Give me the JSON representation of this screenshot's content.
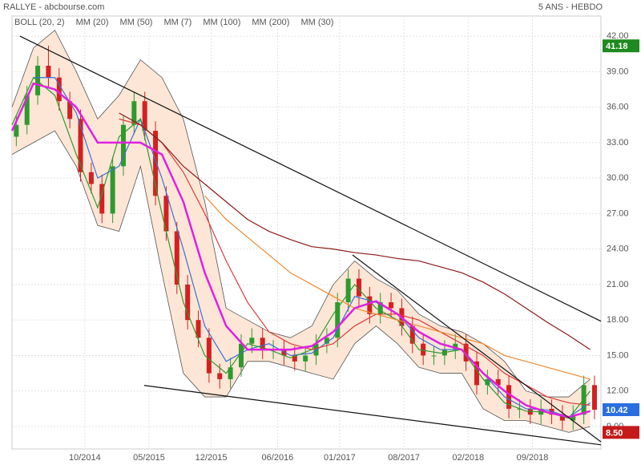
{
  "chart_data": {
    "type": "candlestick",
    "title": "RALLYE - abcbourse.com",
    "subtitle": "5 ANS - HEBDO",
    "xlim": [
      0,
      275
    ],
    "xticks": [
      {
        "value": 34,
        "label": "10/2014"
      },
      {
        "value": 64,
        "label": "05/2015"
      },
      {
        "value": 93,
        "label": "12/2015"
      },
      {
        "value": 124,
        "label": "06/2016"
      },
      {
        "value": 153,
        "label": "01/2017"
      },
      {
        "value": 183,
        "label": "08/2017"
      },
      {
        "value": 213,
        "label": "02/2018"
      },
      {
        "value": 243,
        "label": "09/2018"
      }
    ],
    "ylim": [
      7.1,
      43.7
    ],
    "yticks": [
      {
        "value": 9,
        "label": "9.00"
      },
      {
        "value": 12,
        "label": "12.00"
      },
      {
        "value": 15,
        "label": "15.00"
      },
      {
        "value": 18,
        "label": "18.00"
      },
      {
        "value": 21,
        "label": "21.00"
      },
      {
        "value": 24,
        "label": "24.00"
      },
      {
        "value": 27,
        "label": "27.00"
      },
      {
        "value": 30,
        "label": "30.00"
      },
      {
        "value": 33,
        "label": "33.00"
      },
      {
        "value": 36,
        "label": "36.00"
      },
      {
        "value": 39,
        "label": "39.00"
      },
      {
        "value": 42,
        "label": "42.00"
      }
    ],
    "grid": true,
    "up_color": "#2e9a2e",
    "down_color": "#d42020",
    "candles": {
      "x": [
        2,
        7,
        12,
        17,
        22,
        27,
        32,
        37,
        42,
        47,
        52,
        57,
        62,
        67,
        72,
        77,
        82,
        87,
        92,
        97,
        102,
        107,
        112,
        117,
        122,
        127,
        132,
        137,
        142,
        147,
        152,
        157,
        162,
        167,
        172,
        177,
        182,
        187,
        192,
        197,
        202,
        207,
        212,
        217,
        222,
        227,
        232,
        237,
        242,
        247,
        252,
        257,
        262,
        267,
        272
      ],
      "open": [
        33.5,
        34.5,
        37,
        39.5,
        38.5,
        36.5,
        35,
        30.5,
        29.5,
        27,
        31,
        34.5,
        36.5,
        34,
        28.5,
        25.5,
        21,
        18,
        16.5,
        13.5,
        13,
        14,
        16,
        16.5,
        15.5,
        15.5,
        15,
        14.5,
        15,
        16,
        16.5,
        19.5,
        21.5,
        20,
        18.5,
        19.5,
        19,
        17.5,
        16,
        15,
        15,
        15.5,
        16,
        14.5,
        12.5,
        13,
        12.5,
        10.5,
        10.5,
        10,
        10.5,
        10,
        9.5,
        10,
        12.5
      ],
      "high": [
        35.3,
        37.8,
        40.3,
        41.2,
        39.3,
        37.3,
        35.8,
        31.3,
        30.3,
        31.8,
        35.3,
        37.3,
        37.3,
        34.8,
        29.3,
        26.3,
        21.8,
        18.8,
        17.3,
        14.3,
        14.8,
        16.8,
        17.3,
        17.3,
        16.3,
        16.3,
        15.8,
        15.8,
        16.8,
        17.3,
        20.3,
        22.3,
        22.3,
        20.8,
        20.3,
        20.3,
        19.8,
        18.3,
        16.8,
        15.8,
        16.3,
        16.8,
        16.8,
        15.3,
        13.8,
        13.8,
        13.3,
        11.3,
        11.3,
        11.3,
        11.3,
        10.8,
        10.8,
        13.3,
        13.3
      ],
      "low": [
        32.7,
        33.7,
        36.2,
        37.7,
        35.7,
        34.2,
        29.7,
        28.7,
        26.2,
        26.2,
        30.2,
        33.7,
        33.2,
        27.7,
        24.7,
        20.2,
        17.2,
        15.7,
        12.7,
        12.2,
        12.2,
        13.2,
        15.2,
        14.7,
        14.7,
        14.2,
        13.7,
        13.7,
        14.2,
        15.2,
        15.7,
        18.7,
        19.2,
        17.7,
        17.7,
        18.2,
        16.7,
        15.2,
        14.2,
        14.2,
        14.2,
        14.7,
        13.7,
        11.7,
        11.7,
        11.7,
        9.7,
        9.7,
        9.2,
        9.2,
        9.2,
        8.7,
        8.7,
        9.2,
        9.6
      ],
      "close": [
        34.5,
        37,
        39.5,
        38.5,
        36.5,
        35,
        30.5,
        29.5,
        27,
        31,
        34.5,
        36.5,
        34,
        28.5,
        25.5,
        21,
        18,
        16.5,
        13.5,
        13,
        14,
        16,
        16.5,
        15.5,
        15.5,
        15,
        14.5,
        15,
        16,
        16.5,
        19.5,
        21.5,
        20,
        18.5,
        19.5,
        19,
        17.5,
        16,
        15,
        15,
        15.5,
        16,
        14.5,
        12.5,
        13,
        12.5,
        10.5,
        10.5,
        10,
        10.5,
        10,
        9.5,
        10,
        12.5,
        10.42
      ]
    },
    "x": [
      0,
      10,
      20,
      30,
      40,
      50,
      60,
      70,
      80,
      90,
      100,
      110,
      120,
      130,
      140,
      150,
      160,
      170,
      180,
      190,
      200,
      210,
      220,
      230,
      240,
      250,
      260,
      270
    ],
    "bollinger": {
      "name": "BOLL (20, 2)",
      "color": "#555555",
      "fill": "#fde6d6",
      "upper": [
        36,
        41,
        42.5,
        39,
        35,
        37,
        40,
        38.5,
        35,
        28,
        19,
        18,
        17,
        16.5,
        17.5,
        21,
        23,
        21.5,
        20.5,
        18.5,
        17.5,
        17,
        16,
        14.5,
        12,
        11.5,
        11.5,
        13
      ],
      "lower": [
        32,
        33,
        34,
        31,
        26,
        25.5,
        31,
        22,
        13.5,
        11.5,
        11.5,
        14.5,
        14.5,
        14,
        13.5,
        13,
        16,
        17.5,
        16,
        14,
        13.5,
        13.5,
        10.5,
        9.5,
        9.5,
        9,
        8.5,
        9
      ]
    },
    "series": [
      {
        "name": "MM (20)",
        "color": "#3b6fd8",
        "values": [
          null,
          38.5,
          38.5,
          35.5,
          30,
          31,
          35,
          30,
          24,
          17.5,
          14.5,
          15.5,
          16,
          15,
          15.2,
          16.5,
          20,
          19.5,
          18.5,
          16.5,
          15.5,
          15.5,
          13.5,
          11.5,
          10.5,
          10.4,
          9.8,
          11
        ]
      },
      {
        "name": "MM (50)",
        "color": "#e03a3a",
        "values": [
          null,
          null,
          null,
          null,
          null,
          35,
          34.5,
          33,
          30.5,
          27,
          23,
          19.5,
          17,
          16,
          15.5,
          16,
          17.5,
          18.5,
          18.5,
          18,
          17,
          16,
          15,
          13.5,
          12.5,
          11.5,
          11,
          10.8
        ]
      },
      {
        "name": "MM (7)",
        "color": "#2e9a2e",
        "values": [
          34.5,
          38.5,
          37,
          32,
          27.5,
          33.5,
          35,
          27,
          19.5,
          15,
          13.5,
          16,
          15.5,
          14.8,
          15.5,
          18.5,
          21,
          19,
          18,
          15.5,
          15.2,
          15.5,
          13,
          11,
          10.3,
          10.2,
          9.7,
          12
        ]
      },
      {
        "name": "MM (100)",
        "color": "#f08a30",
        "values": [
          null,
          null,
          null,
          null,
          null,
          null,
          null,
          null,
          null,
          28.5,
          26.5,
          25,
          23.5,
          22,
          21,
          20,
          19,
          18.5,
          18,
          17.5,
          17,
          16.5,
          16,
          15,
          14.5,
          14,
          13.5,
          13
        ]
      },
      {
        "name": "MM (200)",
        "color": "#8b1a1a",
        "values": [
          null,
          null,
          null,
          null,
          null,
          35.5,
          34.5,
          33,
          31,
          29.5,
          28,
          26.5,
          25.5,
          24.8,
          24.2,
          24,
          23.7,
          23.5,
          23.2,
          23,
          22.5,
          22,
          21.2,
          20.2,
          19,
          17.8,
          16.7,
          15.5
        ]
      },
      {
        "name": "MM (30)",
        "color": "#e020e0",
        "values": [
          34,
          38,
          37.5,
          36,
          33,
          33,
          33,
          32,
          28,
          22,
          17.5,
          15.5,
          15.5,
          15.5,
          15.8,
          17,
          19,
          19.6,
          18.5,
          17,
          16,
          15.5,
          13.5,
          12,
          10.8,
          10.2,
          9.8,
          10.3
        ]
      }
    ],
    "trendlines": [
      {
        "x": [
          3.7,
          275
        ],
        "y": [
          42,
          17.9
        ]
      },
      {
        "x": [
          61.7,
          275
        ],
        "y": [
          12.47,
          7.45
        ]
      },
      {
        "x": [
          159,
          275
        ],
        "y": [
          23.5,
          7.7
        ]
      }
    ],
    "price_badges": [
      {
        "value": 41.18,
        "color": "#1f8a1f"
      },
      {
        "value": 10.42,
        "color": "#2a6fe0"
      },
      {
        "value": {
          "value": 8.5,
          "label": "8.50"
        },
        "color": "#c41a1a"
      }
    ]
  }
}
